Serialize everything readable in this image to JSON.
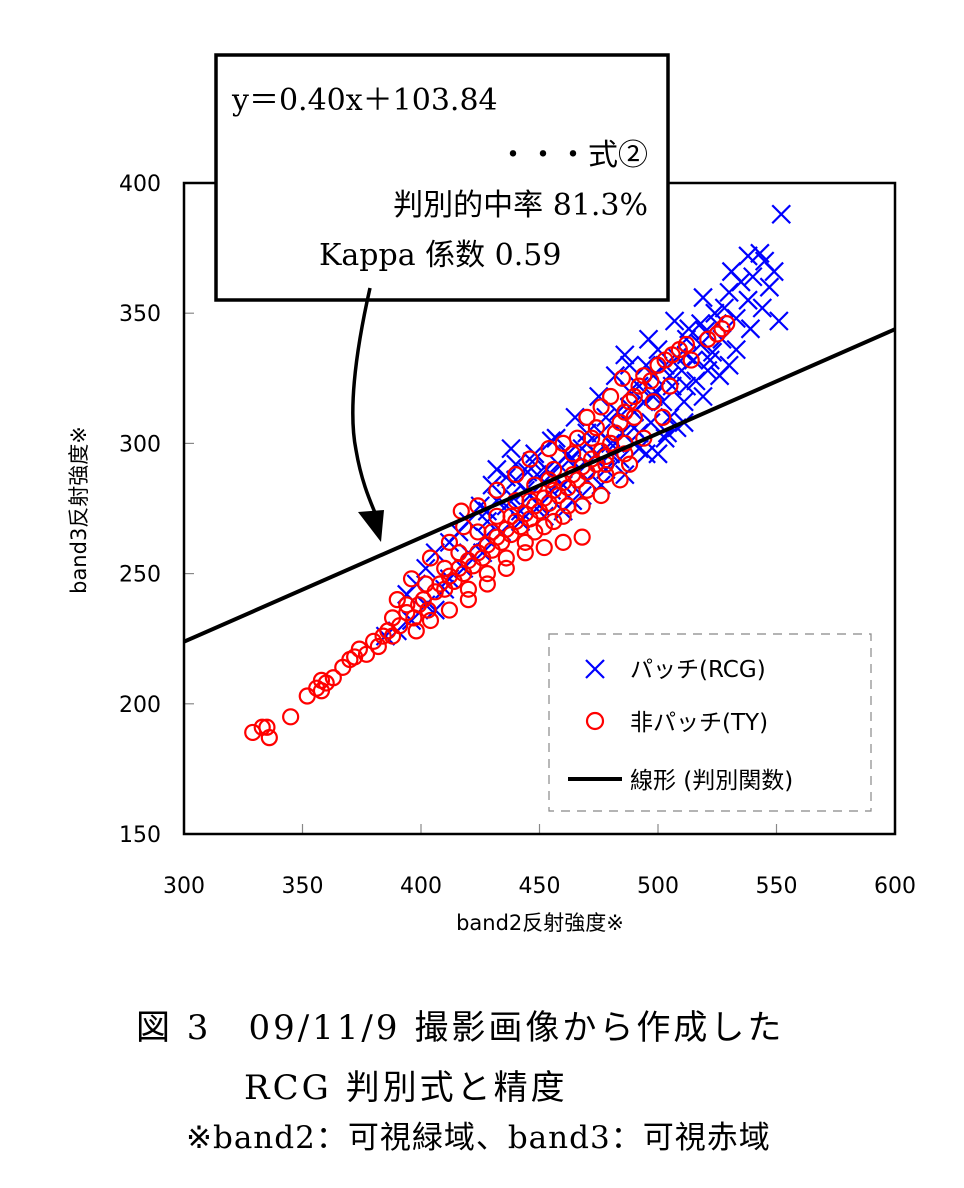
{
  "chart_data": {
    "type": "scatter",
    "xlabel": "band2反射強度※",
    "ylabel": "band3反射強度※",
    "xlim": [
      300,
      600
    ],
    "ylim": [
      150,
      400
    ],
    "xticks": [
      "300",
      "350",
      "400",
      "450",
      "500",
      "550",
      "600"
    ],
    "yticks": [
      "150",
      "200",
      "250",
      "300",
      "350",
      "400"
    ],
    "grid": false,
    "legend_position": "bottom-right",
    "series": [
      {
        "name": "パッチ(RCG)",
        "marker": "x",
        "color": "#0000ff",
        "points": [
          [
            552,
            388
          ],
          [
            543,
            373
          ],
          [
            538,
            372
          ],
          [
            545,
            370
          ],
          [
            549,
            366
          ],
          [
            540,
            364
          ],
          [
            547,
            360
          ],
          [
            535,
            362
          ],
          [
            530,
            358
          ],
          [
            538,
            355
          ],
          [
            551,
            347
          ],
          [
            544,
            352
          ],
          [
            528,
            352
          ],
          [
            533,
            348
          ],
          [
            525,
            346
          ],
          [
            520,
            343
          ],
          [
            527,
            340
          ],
          [
            518,
            338
          ],
          [
            512,
            340
          ],
          [
            523,
            335
          ],
          [
            515,
            332
          ],
          [
            508,
            333
          ],
          [
            530,
            330
          ],
          [
            521,
            328
          ],
          [
            510,
            328
          ],
          [
            503,
            330
          ],
          [
            498,
            326
          ],
          [
            516,
            324
          ],
          [
            506,
            322
          ],
          [
            499,
            320
          ],
          [
            492,
            322
          ],
          [
            511,
            316
          ],
          [
            502,
            316
          ],
          [
            486,
            334
          ],
          [
            494,
            316
          ],
          [
            488,
            314
          ],
          [
            505,
            310
          ],
          [
            497,
            308
          ],
          [
            483,
            312
          ],
          [
            478,
            310
          ],
          [
            490,
            306
          ],
          [
            504,
            304
          ],
          [
            508,
            306
          ],
          [
            485,
            304
          ],
          [
            476,
            304
          ],
          [
            470,
            304
          ],
          [
            480,
            300
          ],
          [
            492,
            298
          ],
          [
            468,
            298
          ],
          [
            474,
            296
          ],
          [
            484,
            294
          ],
          [
            462,
            296
          ],
          [
            458,
            292
          ],
          [
            466,
            290
          ],
          [
            478,
            290
          ],
          [
            453,
            290
          ],
          [
            449,
            288
          ],
          [
            445,
            289
          ],
          [
            440,
            286
          ],
          [
            436,
            287
          ],
          [
            460,
            284
          ],
          [
            470,
            286
          ],
          [
            455,
            282
          ],
          [
            446,
            280
          ],
          [
            438,
            280
          ],
          [
            432,
            278
          ],
          [
            464,
            278
          ],
          [
            450,
            276
          ],
          [
            442,
            274
          ],
          [
            428,
            274
          ],
          [
            470,
            300
          ],
          [
            488,
            320
          ],
          [
            495,
            330
          ],
          [
            500,
            336
          ],
          [
            513,
            344
          ],
          [
            524,
            350
          ],
          [
            531,
            366
          ],
          [
            519,
            356
          ],
          [
            507,
            347
          ],
          [
            496,
            340
          ],
          [
            482,
            326
          ],
          [
            475,
            318
          ],
          [
            465,
            310
          ],
          [
            457,
            302
          ],
          [
            448,
            296
          ],
          [
            440,
            292
          ],
          [
            430,
            284
          ],
          [
            425,
            276
          ],
          [
            420,
            270
          ],
          [
            416,
            266
          ],
          [
            412,
            262
          ],
          [
            406,
            258
          ],
          [
            402,
            252
          ],
          [
            398,
            246
          ],
          [
            394,
            242
          ],
          [
            390,
            228
          ],
          [
            396,
            232
          ],
          [
            402,
            238
          ],
          [
            410,
            244
          ],
          [
            418,
            252
          ],
          [
            426,
            258
          ],
          [
            434,
            266
          ],
          [
            442,
            270
          ],
          [
            452,
            272
          ],
          [
            460,
            274
          ],
          [
            468,
            280
          ],
          [
            476,
            284
          ],
          [
            486,
            288
          ],
          [
            495,
            296
          ],
          [
            503,
            302
          ],
          [
            511,
            308
          ],
          [
            519,
            318
          ],
          [
            526,
            326
          ],
          [
            533,
            336
          ],
          [
            539,
            344
          ],
          [
            470,
            292
          ],
          [
            482,
            300
          ],
          [
            490,
            312
          ],
          [
            498,
            318
          ],
          [
            505,
            326
          ],
          [
            512,
            334
          ],
          [
            518,
            346
          ],
          [
            455,
            288
          ],
          [
            463,
            294
          ],
          [
            444,
            282
          ],
          [
            436,
            276
          ],
          [
            428,
            270
          ],
          [
            500,
            296
          ],
          [
            512,
            322
          ],
          [
            522,
            332
          ],
          [
            492,
            304
          ],
          [
            480,
            296
          ],
          [
            488,
            330
          ],
          [
            447,
            293
          ],
          [
            455,
            301
          ],
          [
            432,
            290
          ],
          [
            438,
            298
          ],
          [
            406,
            236
          ],
          [
            412,
            248
          ],
          [
            420,
            258
          ],
          [
            427,
            264
          ],
          [
            385,
            226
          ]
        ]
      },
      {
        "name": "非パッチ(TY)",
        "marker": "o",
        "color": "#ff0000",
        "points": [
          [
            329,
            189
          ],
          [
            333,
            191
          ],
          [
            335,
            191
          ],
          [
            336,
            187
          ],
          [
            345,
            195
          ],
          [
            352,
            203
          ],
          [
            356,
            206
          ],
          [
            358,
            209
          ],
          [
            360,
            208
          ],
          [
            363,
            210
          ],
          [
            358,
            205
          ],
          [
            367,
            214
          ],
          [
            372,
            218
          ],
          [
            374,
            221
          ],
          [
            370,
            217
          ],
          [
            377,
            219
          ],
          [
            380,
            224
          ],
          [
            384,
            226
          ],
          [
            386,
            228
          ],
          [
            388,
            233
          ],
          [
            391,
            230
          ],
          [
            394,
            235
          ],
          [
            397,
            233
          ],
          [
            399,
            238
          ],
          [
            401,
            240
          ],
          [
            403,
            236
          ],
          [
            406,
            243
          ],
          [
            408,
            246
          ],
          [
            410,
            244
          ],
          [
            412,
            249
          ],
          [
            414,
            247
          ],
          [
            416,
            252
          ],
          [
            418,
            250
          ],
          [
            420,
            255
          ],
          [
            422,
            253
          ],
          [
            424,
            258
          ],
          [
            426,
            256
          ],
          [
            428,
            261
          ],
          [
            430,
            259
          ],
          [
            432,
            264
          ],
          [
            434,
            262
          ],
          [
            436,
            267
          ],
          [
            438,
            265
          ],
          [
            440,
            270
          ],
          [
            442,
            268
          ],
          [
            444,
            273
          ],
          [
            446,
            271
          ],
          [
            448,
            276
          ],
          [
            450,
            274
          ],
          [
            452,
            279
          ],
          [
            454,
            277
          ],
          [
            456,
            282
          ],
          [
            458,
            280
          ],
          [
            460,
            285
          ],
          [
            462,
            283
          ],
          [
            464,
            288
          ],
          [
            466,
            286
          ],
          [
            468,
            291
          ],
          [
            470,
            289
          ],
          [
            472,
            294
          ],
          [
            474,
            292
          ],
          [
            476,
            297
          ],
          [
            478,
            295
          ],
          [
            480,
            300
          ],
          [
            482,
            304
          ],
          [
            484,
            308
          ],
          [
            486,
            312
          ],
          [
            488,
            316
          ],
          [
            490,
            318
          ],
          [
            492,
            322
          ],
          [
            494,
            326
          ],
          [
            497,
            324
          ],
          [
            500,
            330
          ],
          [
            503,
            332
          ],
          [
            506,
            334
          ],
          [
            509,
            336
          ],
          [
            512,
            338
          ],
          [
            514,
            332
          ],
          [
            521,
            340
          ],
          [
            525,
            342
          ],
          [
            527,
            344
          ],
          [
            529,
            346
          ],
          [
            470,
            310
          ],
          [
            476,
            314
          ],
          [
            480,
            318
          ],
          [
            474,
            306
          ],
          [
            466,
            302
          ],
          [
            460,
            300
          ],
          [
            454,
            298
          ],
          [
            446,
            294
          ],
          [
            440,
            288
          ],
          [
            432,
            282
          ],
          [
            424,
            276
          ],
          [
            418,
            268
          ],
          [
            412,
            262
          ],
          [
            404,
            256
          ],
          [
            396,
            248
          ],
          [
            390,
            240
          ],
          [
            420,
            244
          ],
          [
            428,
            250
          ],
          [
            436,
            256
          ],
          [
            444,
            262
          ],
          [
            452,
            268
          ],
          [
            460,
            272
          ],
          [
            468,
            276
          ],
          [
            476,
            280
          ],
          [
            484,
            286
          ],
          [
            488,
            292
          ],
          [
            468,
            264
          ],
          [
            460,
            262
          ],
          [
            452,
            260
          ],
          [
            444,
            258
          ],
          [
            436,
            252
          ],
          [
            428,
            246
          ],
          [
            420,
            240
          ],
          [
            412,
            236
          ],
          [
            404,
            232
          ],
          [
            398,
            228
          ],
          [
            416,
            258
          ],
          [
            424,
            266
          ],
          [
            432,
            272
          ],
          [
            440,
            278
          ],
          [
            448,
            284
          ],
          [
            456,
            290
          ],
          [
            464,
            296
          ],
          [
            472,
            302
          ],
          [
            485,
            325
          ],
          [
            490,
            310
          ],
          [
            498,
            316
          ],
          [
            505,
            322
          ],
          [
            478,
            288
          ],
          [
            486,
            296
          ],
          [
            494,
            302
          ],
          [
            502,
            310
          ],
          [
            417,
            274
          ],
          [
            410,
            252
          ],
          [
            402,
            246
          ],
          [
            394,
            238
          ],
          [
            388,
            226
          ],
          [
            382,
            222
          ],
          [
            448,
            266
          ],
          [
            456,
            270
          ],
          [
            462,
            276
          ],
          [
            470,
            282
          ],
          [
            478,
            292
          ],
          [
            486,
            300
          ],
          [
            430,
            266
          ],
          [
            438,
            272
          ],
          [
            446,
            278
          ],
          [
            454,
            286
          ]
        ]
      },
      {
        "name": "線形 (判別関数)",
        "type": "line",
        "color": "#000000",
        "equation": {
          "slope": 0.4,
          "intercept": 103.84
        }
      }
    ],
    "annotation": {
      "equation": "y＝0.40x＋103.84",
      "equation_tag": "・・・式②",
      "accuracy": "判別的中率 81.3%",
      "kappa": "Kappa 係数 0.59",
      "arrow_target": [
        383,
        257
      ]
    }
  },
  "caption": {
    "line1": "図 3　09/11/9 撮影画像から作成した",
    "line2": "RCG 判別式と精度",
    "note": "※band2：可視緑域、band3：可視赤域"
  }
}
